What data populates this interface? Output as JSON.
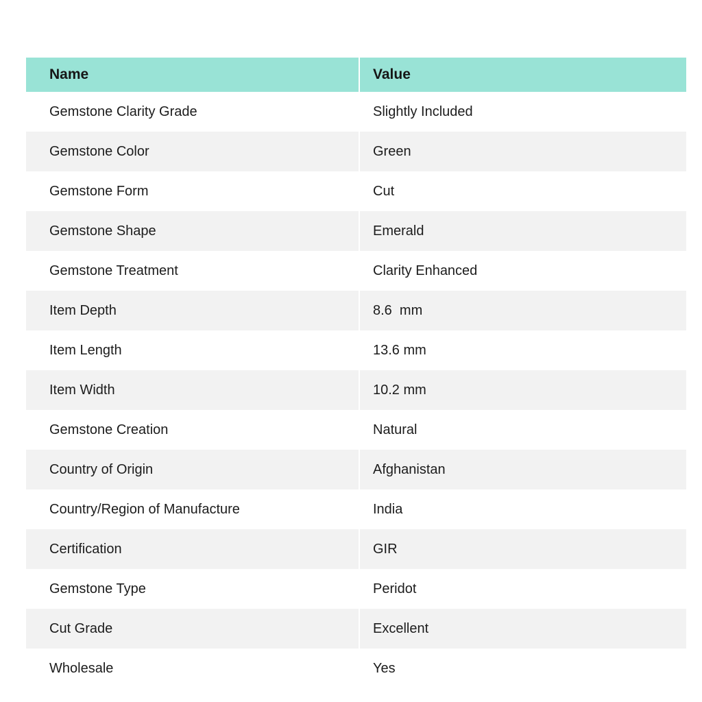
{
  "table": {
    "headers": {
      "name": "Name",
      "value": "Value"
    },
    "rows": [
      {
        "name": "Gemstone Clarity Grade",
        "value": "Slightly Included"
      },
      {
        "name": "Gemstone Color",
        "value": "Green"
      },
      {
        "name": "Gemstone Form",
        "value": "Cut"
      },
      {
        "name": "Gemstone Shape",
        "value": "Emerald"
      },
      {
        "name": "Gemstone Treatment",
        "value": "Clarity Enhanced"
      },
      {
        "name": "Item Depth",
        "value": "8.6  mm"
      },
      {
        "name": "Item Length",
        "value": "13.6 mm"
      },
      {
        "name": "Item Width",
        "value": "10.2 mm"
      },
      {
        "name": "Gemstone Creation",
        "value": "Natural"
      },
      {
        "name": "Country of Origin",
        "value": "Afghanistan"
      },
      {
        "name": "Country/Region of Manufacture",
        "value": "India"
      },
      {
        "name": "Certification",
        "value": "GIR"
      },
      {
        "name": "Gemstone Type",
        "value": "Peridot"
      },
      {
        "name": "Cut Grade",
        "value": "Excellent"
      },
      {
        "name": "Wholesale",
        "value": "Yes"
      }
    ],
    "colors": {
      "header_bg": "#99e3d6",
      "stripe_bg": "#f2f2f2",
      "text": "#1c1c1c"
    }
  }
}
